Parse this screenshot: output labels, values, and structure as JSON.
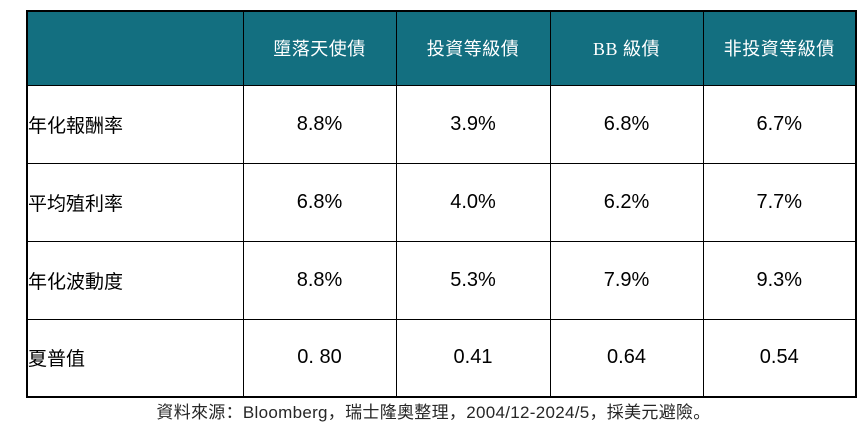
{
  "colors": {
    "header_bg": "#136F80",
    "header_text": "#FFFFFF",
    "border": "#000000"
  },
  "table": {
    "corner_label": "",
    "columns": [
      "墮落天使債",
      "投資等級債",
      "BB 級債",
      "非投資等級債"
    ],
    "rows": [
      {
        "label": "年化報酬率",
        "values": [
          "8.8%",
          "3.9%",
          "6.8%",
          "6.7%"
        ]
      },
      {
        "label": "平均殖利率",
        "values": [
          "6.8%",
          "4.0%",
          "6.2%",
          "7.7%"
        ]
      },
      {
        "label": "年化波動度",
        "values": [
          "8.8%",
          "5.3%",
          "7.9%",
          "9.3%"
        ]
      },
      {
        "label": "夏普值",
        "values": [
          "0. 80",
          "0.41",
          "0.64",
          "0.54"
        ]
      }
    ]
  },
  "footer": {
    "source_note": "資料來源：Bloomberg，瑞士隆奧整理，2004/12-2024/5，採美元避險。"
  },
  "chart_data": {
    "type": "table",
    "title": "",
    "columns": [
      "墮落天使債",
      "投資等級債",
      "BB 級債",
      "非投資等級債"
    ],
    "metrics": [
      "年化報酬率",
      "平均殖利率",
      "年化波動度",
      "夏普值"
    ],
    "rows": [
      [
        "8.8%",
        "3.9%",
        "6.8%",
        "6.7%"
      ],
      [
        "6.8%",
        "4.0%",
        "6.2%",
        "7.7%"
      ],
      [
        "8.8%",
        "5.3%",
        "7.9%",
        "9.3%"
      ],
      [
        "0. 80",
        "0.41",
        "0.64",
        "0.54"
      ]
    ],
    "source": "資料來源：Bloomberg，瑞士隆奧整理，2004/12-2024/5，採美元避險。"
  }
}
